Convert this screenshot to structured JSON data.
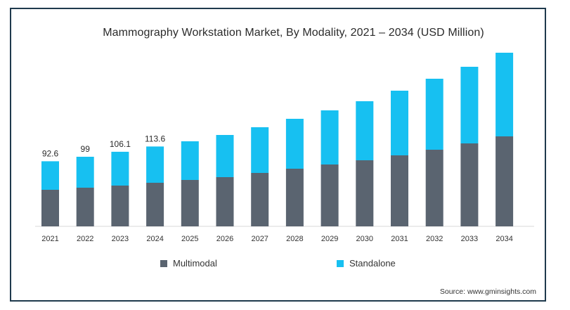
{
  "chart_data": {
    "type": "bar",
    "stacked": true,
    "title": "Mammography Workstation Market, By Modality, 2021 – 2034 (USD Million)",
    "categories": [
      "2021",
      "2022",
      "2023",
      "2024",
      "2025",
      "2026",
      "2027",
      "2028",
      "2029",
      "2030",
      "2031",
      "2032",
      "2033",
      "2034"
    ],
    "series": [
      {
        "name": "Multimodal",
        "color": "#5a6470",
        "values": [
          52,
          55,
          58,
          62,
          66,
          70,
          76,
          82,
          88,
          94,
          101,
          109,
          118,
          128
        ]
      },
      {
        "name": "Standalone",
        "color": "#17c0f1",
        "values": [
          40.6,
          44,
          48.1,
          51.6,
          55,
          60,
          65,
          71,
          77,
          84,
          92,
          101,
          109,
          119
        ]
      }
    ],
    "total_labels": [
      "92.6",
      "99",
      "106.1",
      "113.6"
    ],
    "ylim": [
      0,
      250
    ],
    "grid": false,
    "legend_position": "bottom"
  },
  "source": "Source: www.gminsights.com"
}
